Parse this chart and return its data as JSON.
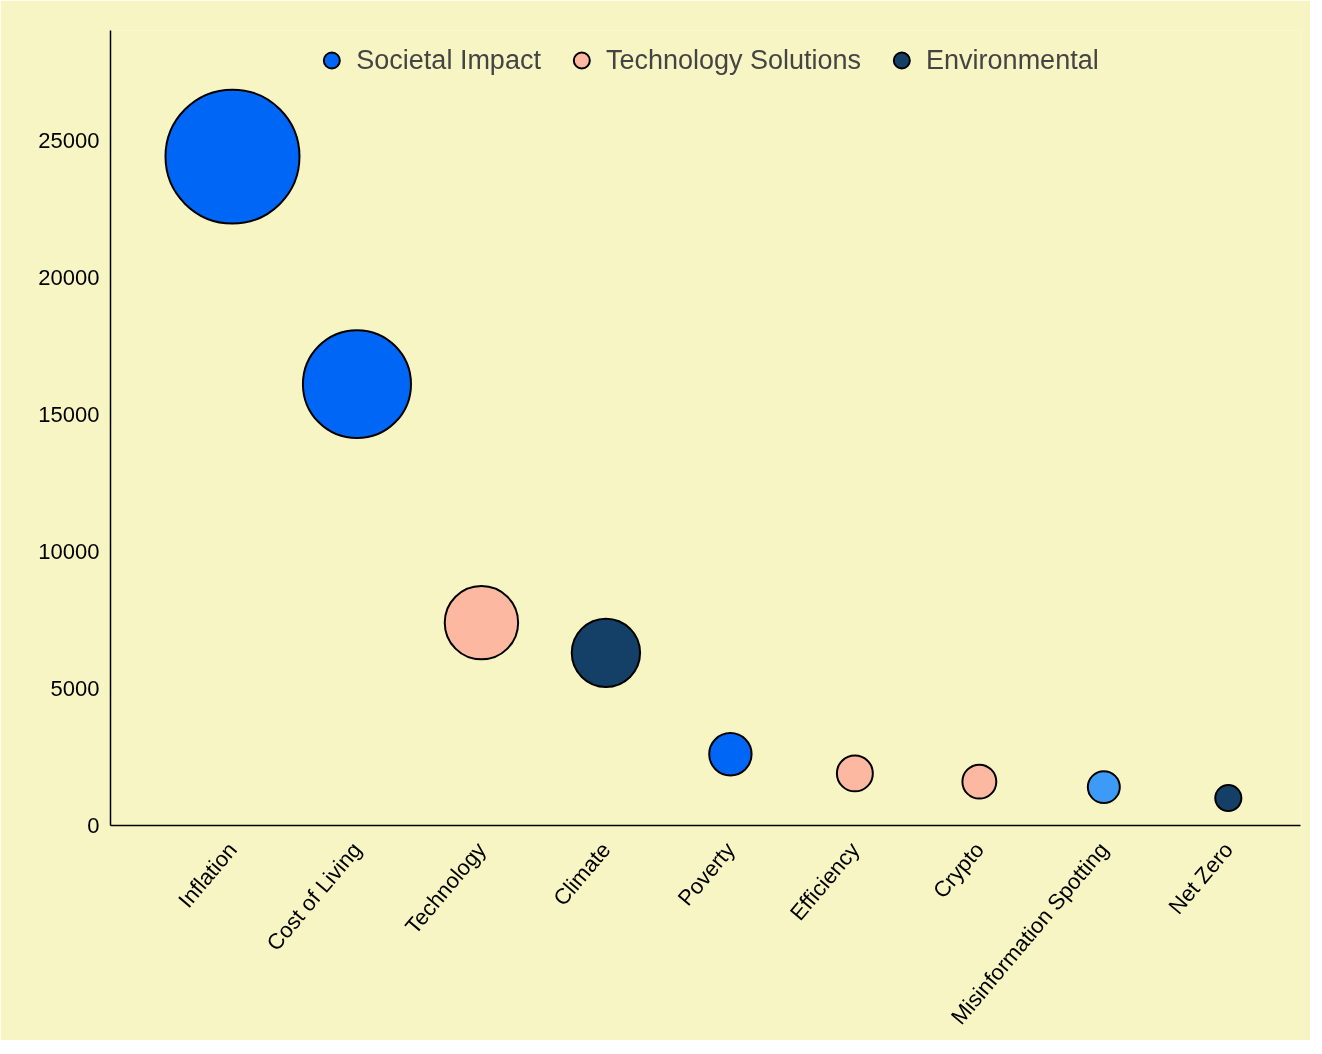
{
  "chart_data": {
    "type": "bubble",
    "categories": [
      "Inflation",
      "Cost of Living",
      "Technology",
      "Climate",
      "Poverty",
      "Efficiency",
      "Crypto",
      "Misinformation Spotting",
      "Net Zero"
    ],
    "series": [
      {
        "name": "Societal Impact",
        "color": "#0066f5",
        "values": [
          24400,
          16100,
          null,
          null,
          2600,
          null,
          null,
          null,
          null
        ],
        "sizes": [
          1,
          0.65,
          null,
          null,
          0.1,
          null,
          null,
          null,
          null
        ]
      },
      {
        "name": "Technology Solutions",
        "color": "#fcb8a0",
        "values": [
          null,
          null,
          7400,
          null,
          null,
          1900,
          1600,
          null,
          null
        ],
        "sizes": [
          null,
          null,
          0.3,
          null,
          null,
          0.072,
          0.064,
          null,
          null
        ]
      },
      {
        "name": "Environmental",
        "color": "#143f66",
        "values": [
          null,
          null,
          null,
          6300,
          null,
          null,
          null,
          null,
          1000
        ],
        "sizes": [
          null,
          null,
          null,
          0.26,
          null,
          null,
          null,
          null,
          0.038
        ]
      },
      {
        "color": "#3d9bf7",
        "values": [
          null,
          null,
          null,
          null,
          null,
          null,
          null,
          1400,
          null
        ],
        "sizes": [
          null,
          null,
          null,
          null,
          null,
          null,
          null,
          0.057,
          null
        ]
      }
    ],
    "ylim": [
      0,
      29000
    ],
    "yticks": [
      0,
      5000,
      10000,
      15000,
      20000,
      25000
    ],
    "grid": false,
    "legend": "top"
  }
}
